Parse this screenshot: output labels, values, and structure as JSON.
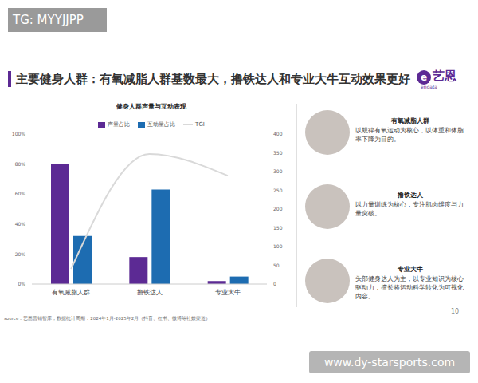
{
  "header": {
    "watermark": "TG: MYYJJPP",
    "title": "主要健身人群：有氧减脂人群基数最大，撸铁达人和专业大牛互动效果更好",
    "logo": "艺恩",
    "logo_sub": "endata"
  },
  "chart_data": {
    "type": "bar",
    "title": "健身人群声量与互动表现",
    "categories": [
      "有氧减脂人群",
      "撸铁达人",
      "专业大牛"
    ],
    "series": [
      {
        "name": "声量占比",
        "type": "bar",
        "color": "#5c2a94",
        "values": [
          80,
          18,
          2
        ]
      },
      {
        "name": "互动量占比",
        "type": "bar",
        "color": "#1d6cb1",
        "values": [
          32,
          63,
          5
        ]
      },
      {
        "name": "TGI",
        "type": "line",
        "axis": "y2",
        "color": "#d9d9d9",
        "values": [
          40,
          347,
          289
        ]
      }
    ],
    "ylim": [
      0,
      100
    ],
    "yticks": [
      {
        "value": 0,
        "label": "0%"
      },
      {
        "value": 20,
        "label": "20%"
      },
      {
        "value": 40,
        "label": "40%"
      },
      {
        "value": 60,
        "label": "60%"
      },
      {
        "value": 80,
        "label": "80%"
      },
      {
        "value": 100,
        "label": "100%"
      }
    ],
    "y2lim": [
      0,
      400
    ],
    "y2ticks": [
      0,
      50,
      100,
      150,
      200,
      250,
      300,
      350,
      400
    ],
    "legend": "top",
    "grid": false
  },
  "panel": [
    {
      "title": "有氧减脂人群",
      "text": "以规律有氧运动为核心，以体重和体脂率下降为目的。"
    },
    {
      "title": "撸铁达人",
      "text": "以力量训练为核心，专注肌肉维度与力量突破。"
    },
    {
      "title": "专业大牛",
      "text": "头部健身达人为主，以专业知识为核心驱动力，擅长将运动科学转化为可视化内容。"
    }
  ],
  "footer": {
    "source": "source：艺恩营销智库，数据统计周期：2024年1月-2025年2月（抖音、红书、微博等社媒渠道）",
    "page": "10",
    "watermark": "www.dy-starsports.com"
  }
}
